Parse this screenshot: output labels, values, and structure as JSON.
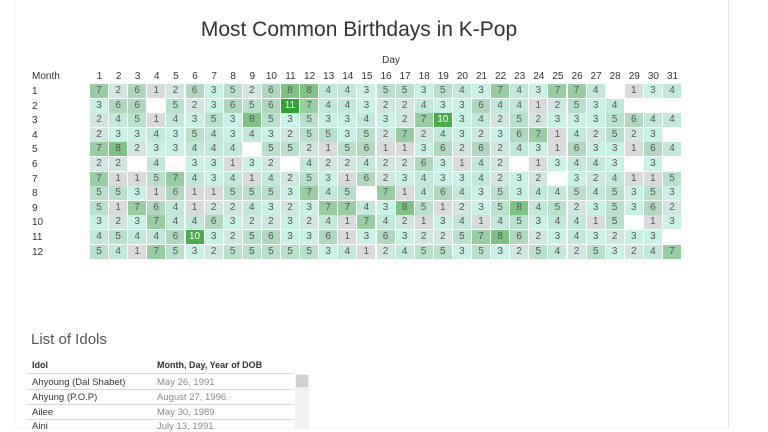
{
  "title": "Most Common Birthdays in K-Pop",
  "chart_data": {
    "type": "heatmap",
    "title": "Most Common Birthdays in K-Pop",
    "x_axis_title": "Day",
    "y_axis_title": "Month",
    "days": [
      "1",
      "2",
      "3",
      "4",
      "5",
      "6",
      "7",
      "8",
      "9",
      "10",
      "11",
      "12",
      "13",
      "14",
      "15",
      "16",
      "17",
      "18",
      "19",
      "20",
      "21",
      "22",
      "23",
      "24",
      "25",
      "26",
      "27",
      "28",
      "29",
      "30",
      "31"
    ],
    "months": [
      "1",
      "2",
      "3",
      "4",
      "5",
      "6",
      "7",
      "8",
      "9",
      "10",
      "11",
      "12"
    ],
    "values": [
      [
        7,
        2,
        6,
        1,
        2,
        6,
        3,
        5,
        2,
        6,
        8,
        8,
        4,
        4,
        3,
        5,
        5,
        3,
        5,
        4,
        3,
        7,
        4,
        3,
        7,
        7,
        4,
        null,
        1,
        3,
        4
      ],
      [
        3,
        6,
        6,
        null,
        5,
        2,
        3,
        6,
        5,
        6,
        11,
        7,
        4,
        4,
        3,
        2,
        2,
        4,
        3,
        3,
        6,
        4,
        4,
        1,
        2,
        5,
        3,
        4,
        null,
        null,
        null
      ],
      [
        2,
        4,
        5,
        1,
        4,
        3,
        5,
        3,
        8,
        5,
        3,
        5,
        3,
        3,
        4,
        3,
        2,
        7,
        10,
        3,
        4,
        2,
        5,
        2,
        3,
        3,
        3,
        5,
        6,
        4,
        4
      ],
      [
        2,
        3,
        3,
        4,
        3,
        5,
        4,
        3,
        4,
        3,
        2,
        5,
        5,
        3,
        5,
        2,
        7,
        2,
        4,
        3,
        2,
        3,
        6,
        7,
        1,
        4,
        2,
        5,
        2,
        3,
        null
      ],
      [
        7,
        8,
        2,
        3,
        3,
        4,
        4,
        4,
        null,
        5,
        5,
        2,
        1,
        5,
        6,
        1,
        1,
        3,
        6,
        2,
        6,
        2,
        4,
        3,
        1,
        6,
        3,
        3,
        1,
        6,
        4
      ],
      [
        2,
        2,
        null,
        4,
        null,
        3,
        3,
        1,
        3,
        2,
        null,
        4,
        2,
        2,
        4,
        2,
        2,
        6,
        3,
        1,
        4,
        2,
        null,
        1,
        3,
        4,
        4,
        3,
        null,
        3,
        null
      ],
      [
        7,
        1,
        1,
        5,
        7,
        4,
        3,
        4,
        1,
        4,
        2,
        5,
        3,
        1,
        6,
        2,
        3,
        4,
        3,
        3,
        4,
        2,
        3,
        2,
        null,
        3,
        2,
        4,
        1,
        1,
        5
      ],
      [
        5,
        5,
        3,
        1,
        6,
        1,
        1,
        5,
        5,
        5,
        3,
        7,
        4,
        5,
        null,
        7,
        1,
        4,
        6,
        4,
        3,
        5,
        3,
        4,
        4,
        5,
        4,
        5,
        3,
        5,
        3
      ],
      [
        5,
        1,
        7,
        6,
        4,
        1,
        2,
        2,
        4,
        3,
        2,
        3,
        7,
        7,
        4,
        3,
        8,
        5,
        1,
        2,
        3,
        5,
        8,
        4,
        5,
        2,
        3,
        5,
        3,
        6,
        2
      ],
      [
        3,
        2,
        3,
        7,
        4,
        4,
        6,
        3,
        2,
        2,
        3,
        2,
        4,
        1,
        7,
        4,
        2,
        1,
        3,
        4,
        1,
        4,
        5,
        3,
        4,
        4,
        1,
        5,
        null,
        1,
        3
      ],
      [
        4,
        5,
        4,
        4,
        6,
        10,
        3,
        2,
        5,
        6,
        3,
        3,
        6,
        1,
        3,
        6,
        3,
        2,
        2,
        5,
        7,
        8,
        6,
        2,
        3,
        4,
        3,
        2,
        3,
        3,
        null
      ],
      [
        5,
        4,
        1,
        7,
        5,
        3,
        2,
        5,
        5,
        5,
        5,
        5,
        3,
        4,
        1,
        2,
        4,
        5,
        5,
        3,
        5,
        3,
        2,
        5,
        4,
        2,
        5,
        3,
        2,
        4,
        7
      ]
    ],
    "color_scale": {
      "low": "#d9dadb",
      "mid": "#c8f2e6",
      "high": "#2ea32e"
    }
  },
  "list": {
    "title": "List of Idols",
    "col_idol": "Idol",
    "col_dob": "Month, Day, Year of DOB",
    "rows": [
      {
        "idol": "Ahyoung (Dal Shabet)",
        "dob": "May 26, 1991"
      },
      {
        "idol": "Ahyung (P.O.P)",
        "dob": "August 27, 1996"
      },
      {
        "idol": "Ailee",
        "dob": "May 30, 1989"
      },
      {
        "idol": "Aini",
        "dob": "July 13, 1991"
      }
    ]
  }
}
